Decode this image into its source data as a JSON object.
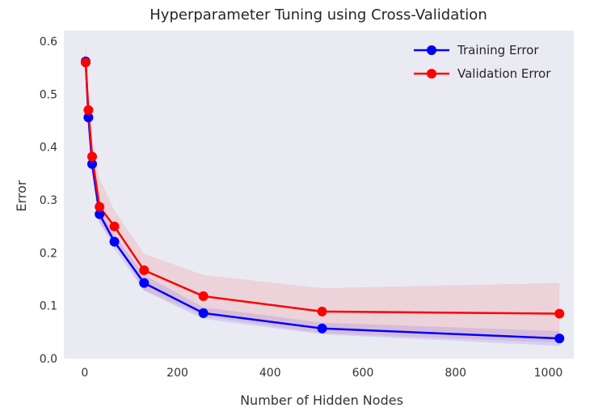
{
  "chart_data": {
    "type": "line",
    "title": "Hyperparameter Tuning using Cross-Validation",
    "xlabel": "Number of Hidden Nodes",
    "ylabel": "Error",
    "xlim": [
      -45,
      1055
    ],
    "ylim": [
      0,
      0.62
    ],
    "xticks": [
      0,
      200,
      400,
      600,
      800,
      1000
    ],
    "yticks": [
      0.0,
      0.1,
      0.2,
      0.3,
      0.4,
      0.5,
      0.6
    ],
    "grid": false,
    "legend_position": "top-right",
    "x": [
      2,
      8,
      16,
      32,
      64,
      128,
      256,
      512,
      1024
    ],
    "series": [
      {
        "name": "Training Error",
        "color": "#0000ff",
        "values": [
          0.562,
          0.456,
          0.368,
          0.273,
          0.221,
          0.143,
          0.086,
          0.057,
          0.038
        ],
        "lower": [
          0.535,
          0.43,
          0.348,
          0.258,
          0.208,
          0.128,
          0.075,
          0.046,
          0.024
        ],
        "upper": [
          0.59,
          0.482,
          0.388,
          0.288,
          0.234,
          0.158,
          0.097,
          0.068,
          0.052
        ]
      },
      {
        "name": "Validation Error",
        "color": "#ff0000",
        "values": [
          0.56,
          0.47,
          0.382,
          0.287,
          0.25,
          0.167,
          0.118,
          0.089,
          0.085
        ],
        "lower": [
          0.525,
          0.44,
          0.35,
          0.255,
          0.222,
          0.13,
          0.08,
          0.048,
          0.03
        ],
        "upper": [
          0.595,
          0.5,
          0.414,
          0.34,
          0.28,
          0.198,
          0.158,
          0.133,
          0.143
        ]
      }
    ]
  }
}
